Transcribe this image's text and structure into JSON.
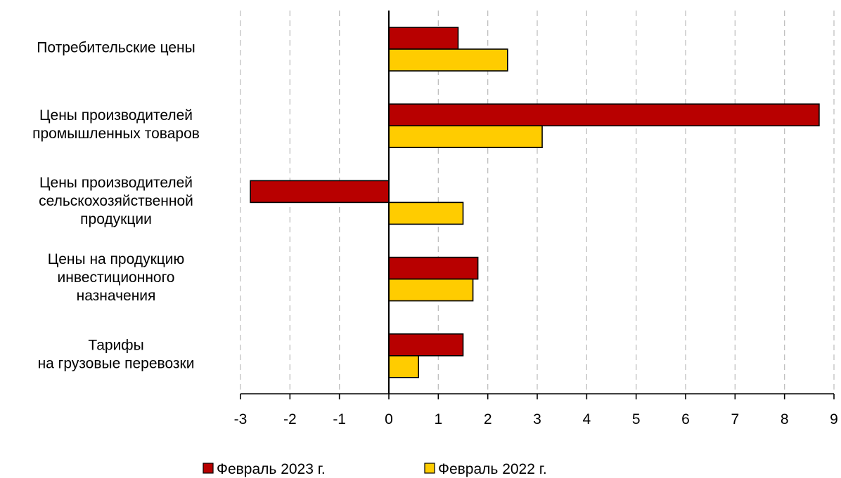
{
  "chart_data": {
    "type": "bar",
    "orientation": "horizontal",
    "categories": [
      [
        "Потребительские цены"
      ],
      [
        "Цены производителей",
        "промышленных товаров"
      ],
      [
        "Цены производителей",
        "сельскохозяйственной",
        "продукции"
      ],
      [
        "Цены на продукцию",
        "инвестиционного",
        "назначения"
      ],
      [
        "Тарифы",
        "на грузовые перевозки"
      ]
    ],
    "series": [
      {
        "name": "Февраль 2023 г.",
        "color": "#B80000",
        "values": [
          1.4,
          8.7,
          -2.8,
          1.8,
          1.5
        ]
      },
      {
        "name": "Февраль 2022 г.",
        "color": "#FFCC00",
        "values": [
          2.4,
          3.1,
          1.5,
          1.7,
          0.6
        ]
      }
    ],
    "xlim": [
      -3,
      9
    ],
    "xticks": [
      "-3",
      "-2",
      "-1",
      "0",
      "1",
      "2",
      "3",
      "4",
      "5",
      "6",
      "7",
      "8",
      "9"
    ],
    "grid": "vertical dashed",
    "legend_position": "bottom",
    "title": "",
    "xlabel": "",
    "ylabel": ""
  }
}
